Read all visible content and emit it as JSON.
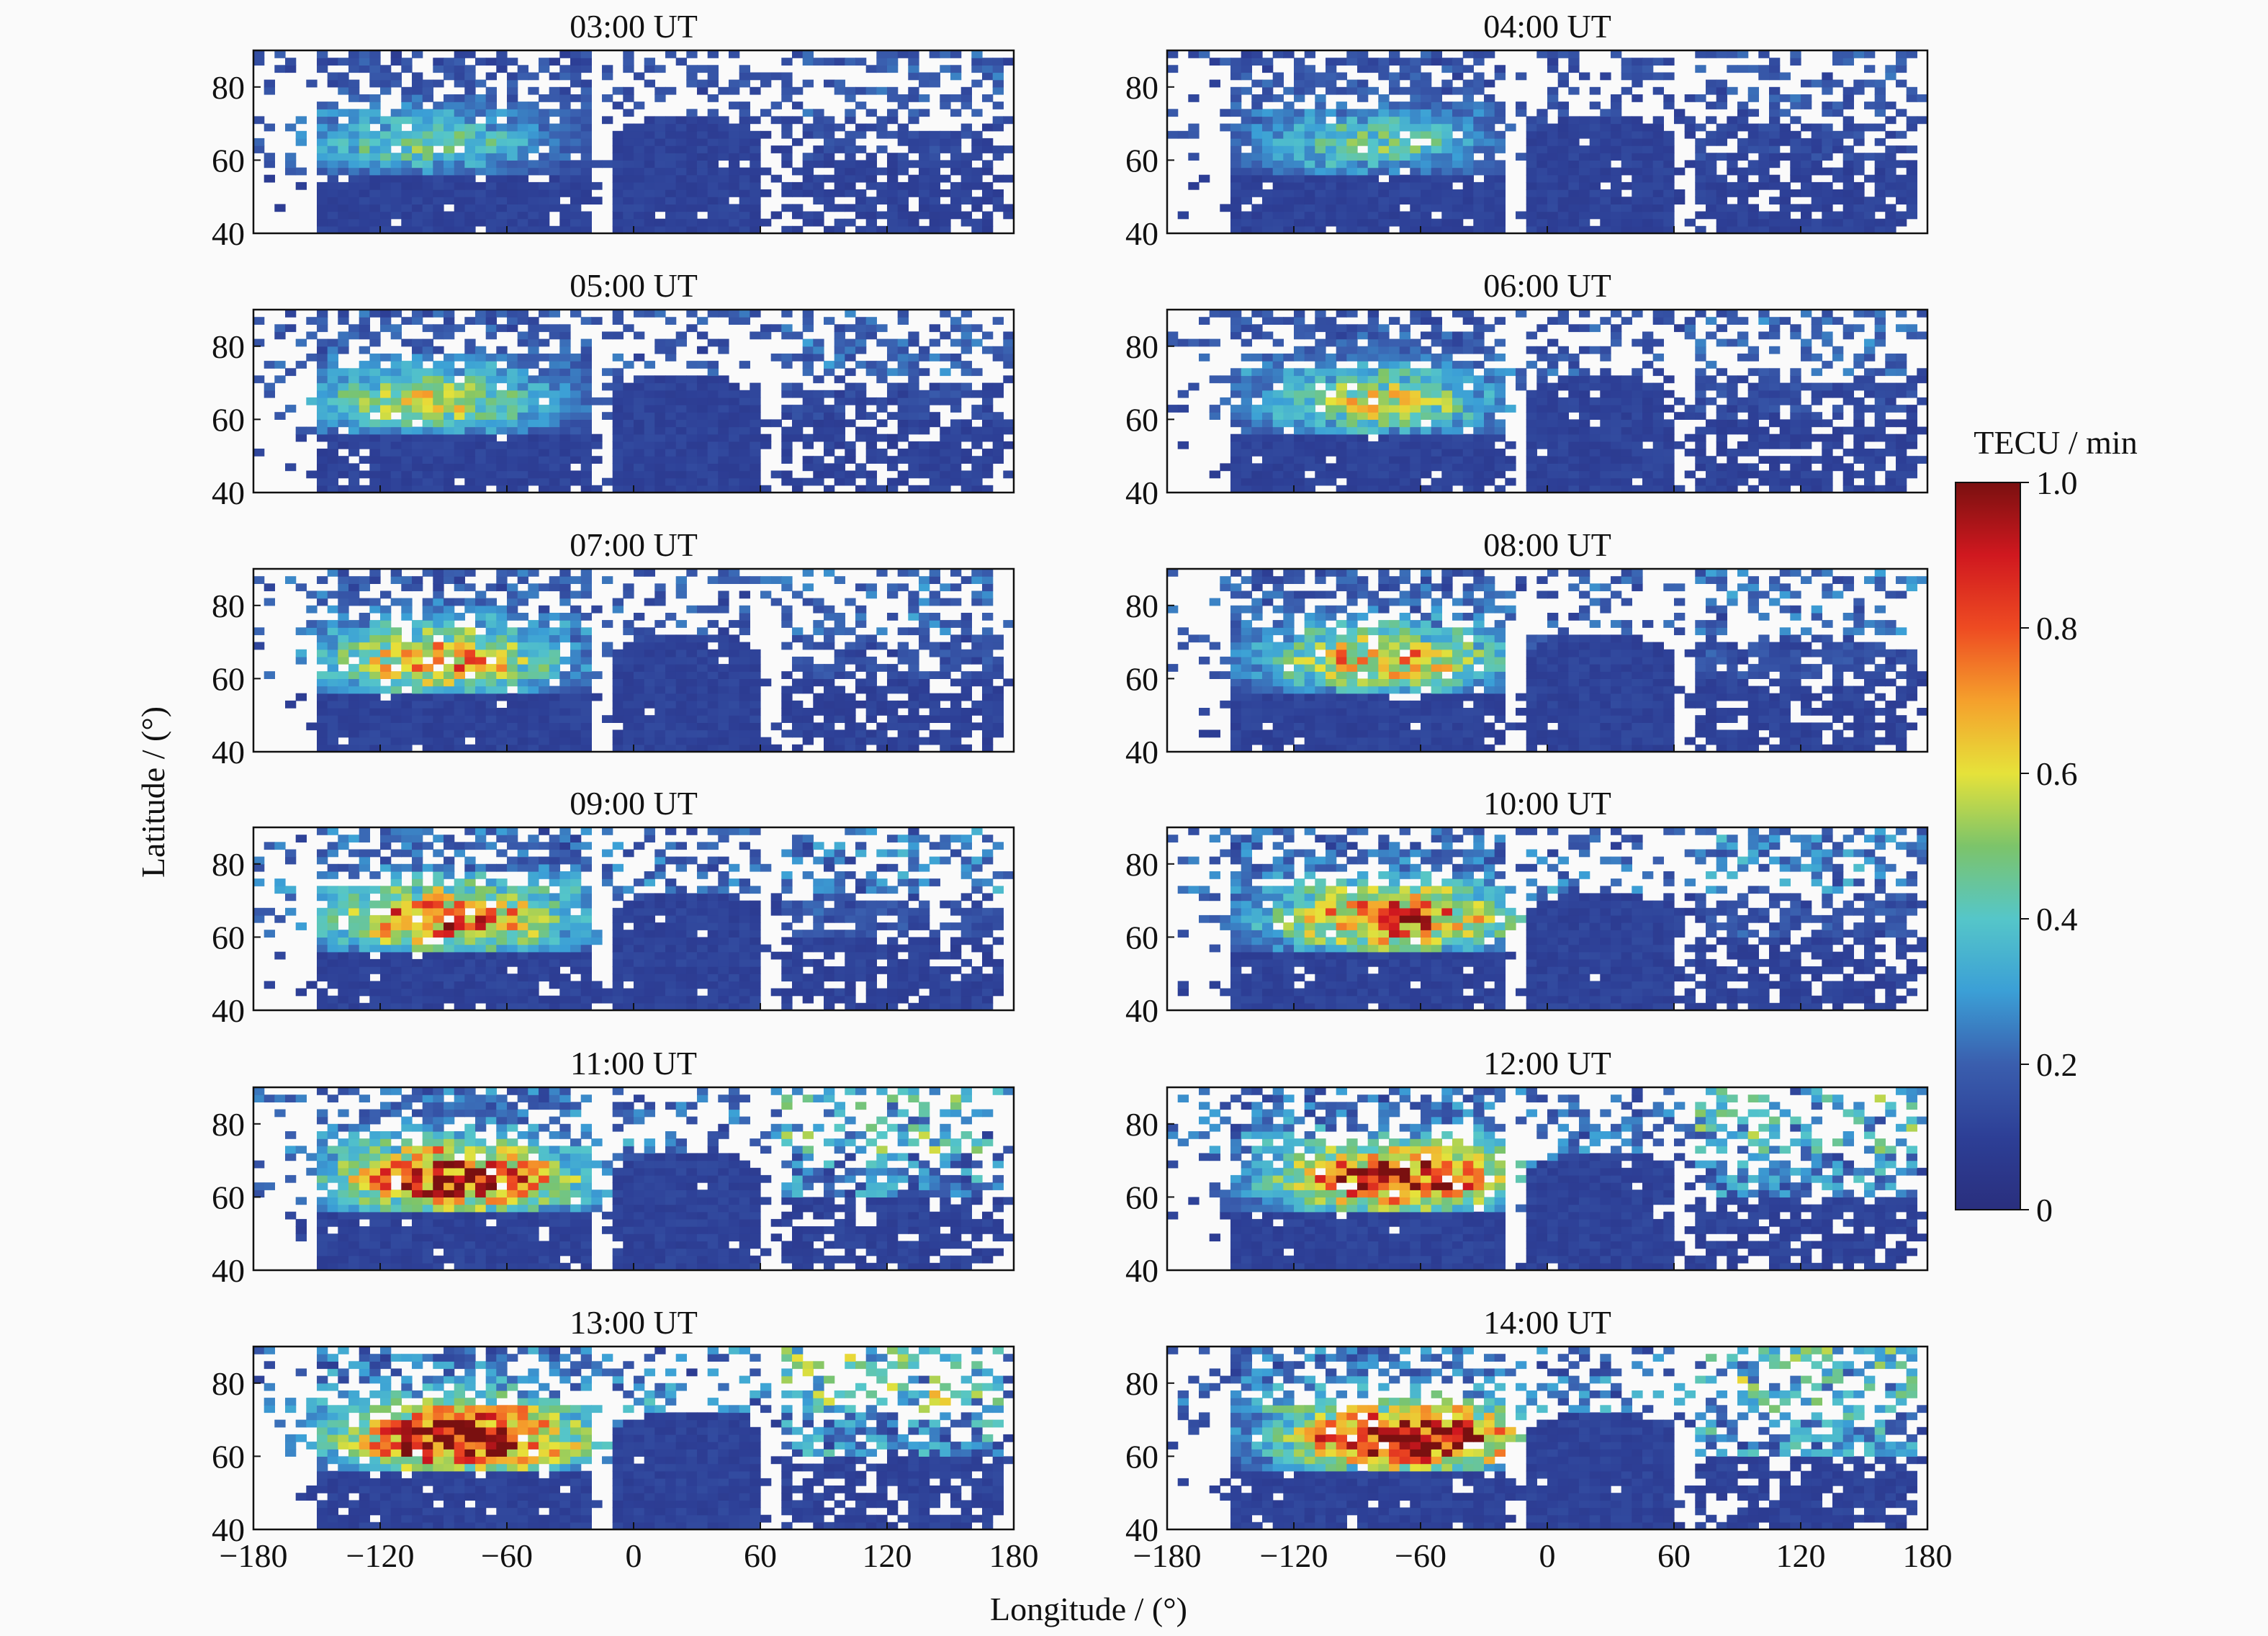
{
  "chart_data": {
    "type": "heatmap",
    "layout": {
      "rows": 6,
      "columns": 2
    },
    "panels": [
      {
        "title": "03:00  UT"
      },
      {
        "title": "04:00  UT"
      },
      {
        "title": "05:00  UT"
      },
      {
        "title": "06:00  UT"
      },
      {
        "title": "07:00  UT"
      },
      {
        "title": "08:00  UT"
      },
      {
        "title": "09:00  UT"
      },
      {
        "title": "10:00  UT"
      },
      {
        "title": "11:00  UT"
      },
      {
        "title": "12:00  UT"
      },
      {
        "title": "13:00  UT"
      },
      {
        "title": "14:00  UT"
      }
    ],
    "xlabel": "Longitude / (°)",
    "ylabel": "Latitude / (°)",
    "xlim": [
      -180,
      180
    ],
    "ylim": [
      40,
      90
    ],
    "xticks": [
      -180,
      -120,
      -60,
      0,
      60,
      120,
      180
    ],
    "xtick_labels": [
      "−180",
      "−120",
      "−60",
      "0",
      "60",
      "120",
      "180"
    ],
    "yticks": [
      40,
      60,
      80
    ],
    "ytick_labels": [
      "40",
      "60",
      "80"
    ],
    "colorbar": {
      "title": "TECU / min",
      "range": [
        0,
        1.0
      ],
      "ticks": [
        0,
        0.2,
        0.4,
        0.6,
        0.8,
        1.0
      ],
      "tick_labels": [
        "0",
        "0.2",
        "0.4",
        "0.6",
        "0.8",
        "1.0"
      ],
      "placement": "right",
      "colormap": "jet"
    }
  }
}
